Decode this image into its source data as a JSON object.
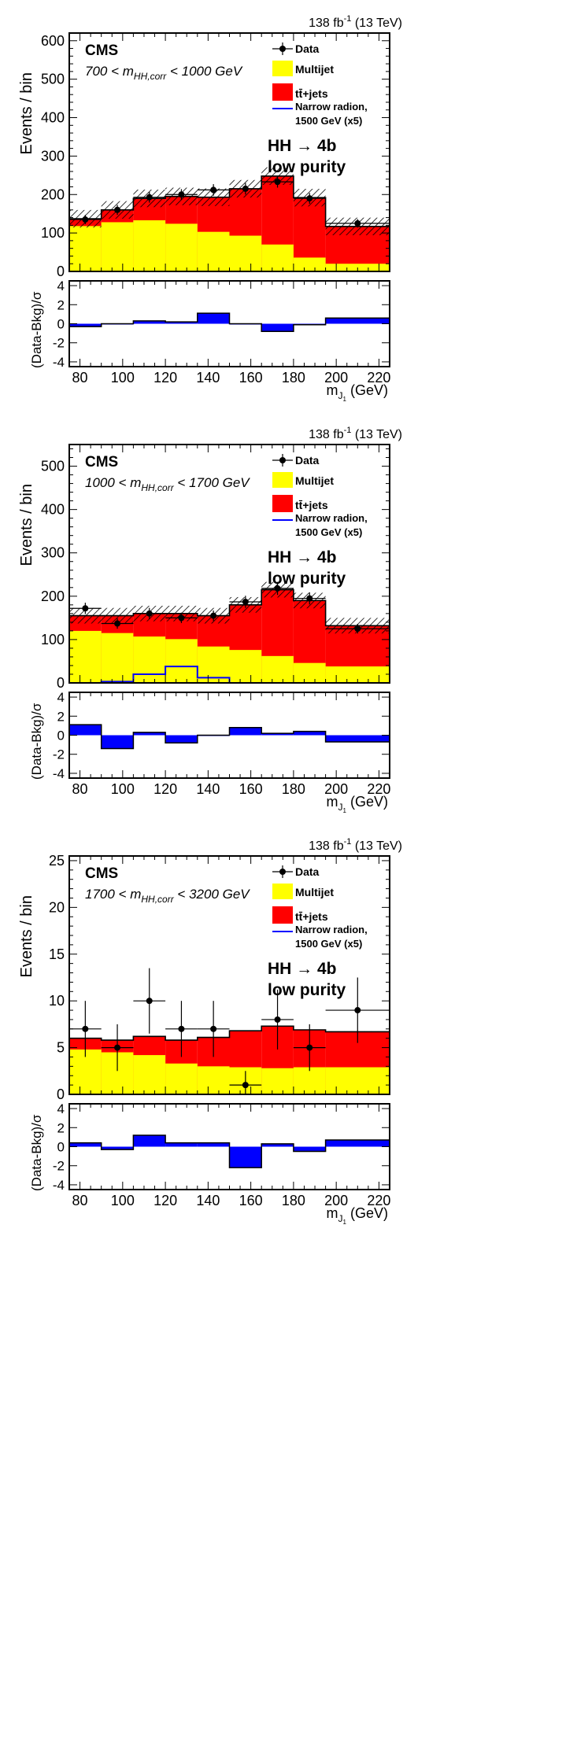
{
  "figure": {
    "edges": [
      75,
      90,
      105,
      120,
      135,
      150,
      165,
      180,
      195,
      225
    ],
    "x_range": [
      75,
      225
    ],
    "x_ticks": [
      80,
      100,
      120,
      140,
      160,
      180,
      200,
      220
    ],
    "ratio_ylim": [
      -4.5,
      4.5
    ],
    "ratio_ticks": [
      -4,
      -2,
      0,
      2,
      4
    ],
    "ylabel": "Events / bin",
    "ratio_ylabel": "(Data-Bkg)/σ",
    "xlabel_main": "m",
    "xlabel_sub": "J",
    "xlabel_subsub": "1",
    "xlabel_unit": " (GeV)",
    "lumi_base": "138 fb",
    "lumi_exp": "-1",
    "lumi_energy": " (13 TeV)",
    "experiment": "CMS",
    "analysis_line1": "HH → 4b",
    "analysis_line2": "low purity",
    "legend": {
      "data": "Data",
      "multijet": "Multijet",
      "ttbar": "tt̄+jets",
      "signal_line1": "Narrow radion,",
      "signal_line2": "1500 GeV (x5)"
    },
    "colors": {
      "multijet": "#ffff00",
      "ttbar": "#ff0000",
      "ratio": "#0000ff",
      "signal": "#0000ff",
      "data": "#000000"
    }
  },
  "chart_data": [
    {
      "type": "bar",
      "panel": "top",
      "title": "700 < m_HH,corr < 1000 GeV",
      "cat_prefix": "700 < m",
      "cat_sub": "HH,corr",
      "cat_suffix": " < 1000 GeV",
      "ylim": [
        0,
        620
      ],
      "yticks": [
        0,
        100,
        200,
        300,
        400,
        500,
        600
      ],
      "multijet": [
        118,
        128,
        133,
        124,
        103,
        93,
        70,
        36,
        20
      ],
      "total_bkg": [
        137,
        160,
        190,
        195,
        193,
        215,
        248,
        192,
        117
      ],
      "signal": [
        0,
        0,
        0,
        0,
        0,
        0,
        0,
        0,
        0
      ],
      "data": [
        135,
        160,
        193,
        200,
        212,
        215,
        233,
        190,
        125
      ],
      "data_err": [
        12,
        13,
        14,
        14,
        15,
        15,
        15,
        14,
        11
      ],
      "ratio": [
        -0.3,
        0.0,
        0.3,
        0.2,
        1.1,
        0.0,
        -0.8,
        -0.1,
        0.6
      ]
    },
    {
      "type": "bar",
      "panel": "middle",
      "title": "1000 < m_HH,corr < 1700 GeV",
      "cat_prefix": "1000 < m",
      "cat_sub": "HH,corr",
      "cat_suffix": " < 1700 GeV",
      "ylim": [
        0,
        550
      ],
      "yticks": [
        0,
        100,
        200,
        300,
        400,
        500
      ],
      "multijet": [
        120,
        115,
        107,
        101,
        84,
        76,
        62,
        46,
        38
      ],
      "total_bkg": [
        155,
        155,
        160,
        160,
        155,
        180,
        215,
        190,
        132
      ],
      "signal": [
        0,
        3,
        20,
        38,
        12,
        0,
        0,
        0,
        0
      ],
      "data": [
        172,
        137,
        160,
        150,
        155,
        187,
        218,
        195,
        125
      ],
      "data_err": [
        13,
        12,
        13,
        12,
        12,
        14,
        15,
        14,
        11
      ],
      "ratio": [
        1.1,
        -1.4,
        0.3,
        -0.8,
        0.0,
        0.8,
        0.2,
        0.4,
        -0.7
      ]
    },
    {
      "type": "bar",
      "panel": "bottom",
      "title": "1700 < m_HH,corr < 3200 GeV",
      "cat_prefix": "1700 < m",
      "cat_sub": "HH,corr",
      "cat_suffix": " < 3200 GeV",
      "ylim": [
        0,
        25.5
      ],
      "yticks": [
        0,
        5,
        10,
        15,
        20,
        25
      ],
      "multijet": [
        4.8,
        4.5,
        4.2,
        3.3,
        3.0,
        2.9,
        2.8,
        2.9,
        2.9
      ],
      "total_bkg": [
        6.0,
        5.8,
        6.2,
        5.8,
        6.1,
        6.8,
        7.3,
        6.9,
        6.7
      ],
      "signal": [
        0,
        0,
        0,
        0,
        0,
        0,
        0,
        0,
        0
      ],
      "data": [
        7,
        5,
        10,
        7,
        7,
        1,
        8,
        5,
        9
      ],
      "data_err": [
        3,
        2.5,
        3.5,
        3,
        3,
        1.5,
        3.2,
        2.5,
        3.5
      ],
      "ratio": [
        0.4,
        -0.3,
        1.2,
        0.4,
        0.4,
        -2.2,
        0.3,
        -0.5,
        0.7
      ]
    }
  ]
}
